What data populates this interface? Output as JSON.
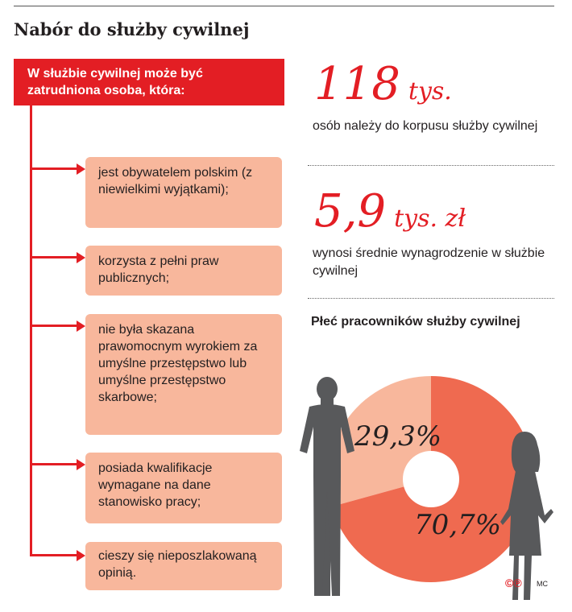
{
  "header": {
    "title": "Nabór do służby cywilnej"
  },
  "criteria": {
    "intro": "W służbie cywilnej może być zatrudniona osoba, która:",
    "items": [
      "jest obywatelem polskim (z niewielkimi wyjątkami);",
      "korzysta z pełni praw publicznych;",
      "nie była skazana prawomocnym wyrokiem za umyślne przestępstwo lub umyślne przestępstwo skarbowe;",
      "posiada kwalifikacje wymagane na dane stanowisko pracy;",
      "cieszy się nieposzlakowaną opinią."
    ]
  },
  "stats": [
    {
      "value": "118",
      "unit": "tys.",
      "description": "osób należy do korpusu służby cywilnej"
    },
    {
      "value": "5,9",
      "unit": "tys. zł",
      "description": "wynosi średnie wynagrodzenie w służbie cywilnej"
    }
  ],
  "chart_data": {
    "type": "pie",
    "title": "Płeć pracowników służby cywilnej",
    "style": "donut",
    "slices": [
      {
        "label": "29,3%",
        "value": 29.3,
        "color": "#f8b79c"
      },
      {
        "label": "70,7%",
        "value": 70.7,
        "color": "#ef6a50"
      }
    ]
  },
  "icons": {
    "men": "man-silhouette-icon",
    "women": "woman-silhouette-icon"
  },
  "footer": {
    "credit": "©℗",
    "author": "MC"
  }
}
